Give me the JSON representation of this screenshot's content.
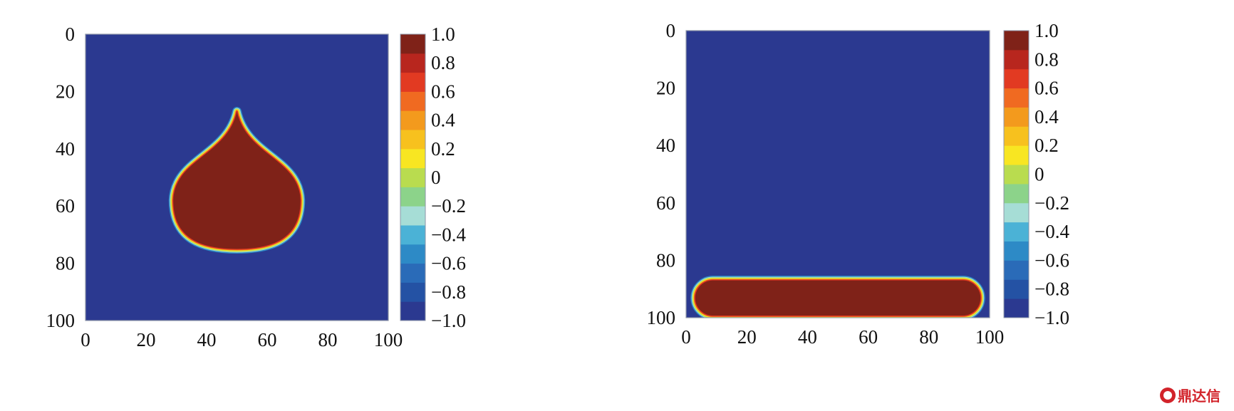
{
  "chart_data": [
    {
      "type": "heatmap",
      "title": "",
      "xlabel": "",
      "ylabel": "",
      "xlim": [
        0,
        100
      ],
      "ylim": [
        0,
        100
      ],
      "y_inverted": true,
      "x_ticks": [
        "0",
        "20",
        "40",
        "60",
        "80",
        "100"
      ],
      "y_ticks": [
        "0",
        "20",
        "40",
        "60",
        "80",
        "100"
      ],
      "value_range": [
        -1.0,
        1.0
      ],
      "background_value": -1.0,
      "colorbar_ticks": [
        "1.0",
        "0.8",
        "0.6",
        "0.4",
        "0.2",
        "0",
        "−0.2",
        "−0.4",
        "−0.6",
        "−0.8",
        "−1.0"
      ],
      "shape": {
        "kind": "droplet",
        "value": 1.0,
        "tip": [
          50,
          27
        ],
        "center": [
          50,
          58
        ],
        "radius_x": 21,
        "radius_y": 17
      }
    },
    {
      "type": "heatmap",
      "title": "",
      "xlabel": "",
      "ylabel": "",
      "xlim": [
        0,
        100
      ],
      "ylim": [
        0,
        100
      ],
      "y_inverted": true,
      "x_ticks": [
        "0",
        "20",
        "40",
        "60",
        "80",
        "100"
      ],
      "y_ticks": [
        "0",
        "20",
        "40",
        "60",
        "80",
        "100"
      ],
      "value_range": [
        -1.0,
        1.0
      ],
      "background_value": -1.0,
      "colorbar_ticks": [
        "1.0",
        "0.8",
        "0.6",
        "0.4",
        "0.2",
        "0",
        "−0.2",
        "−0.4",
        "−0.6",
        "−0.8",
        "−1.0"
      ],
      "shape": {
        "kind": "film",
        "value": 1.0,
        "x_range": [
          3,
          97
        ],
        "y_range": [
          87,
          100
        ]
      }
    }
  ],
  "colormap": [
    "#2b3990",
    "#2452a4",
    "#2a6bb8",
    "#2d8ac6",
    "#4bb2d6",
    "#a6ddd6",
    "#8cd38a",
    "#b9dc4f",
    "#f8e622",
    "#f7c11e",
    "#f39a1d",
    "#f06a21",
    "#e23a22",
    "#b8261e",
    "#7f2218"
  ],
  "watermark": {
    "text": "鼎达信",
    "color": "#d2232a"
  }
}
